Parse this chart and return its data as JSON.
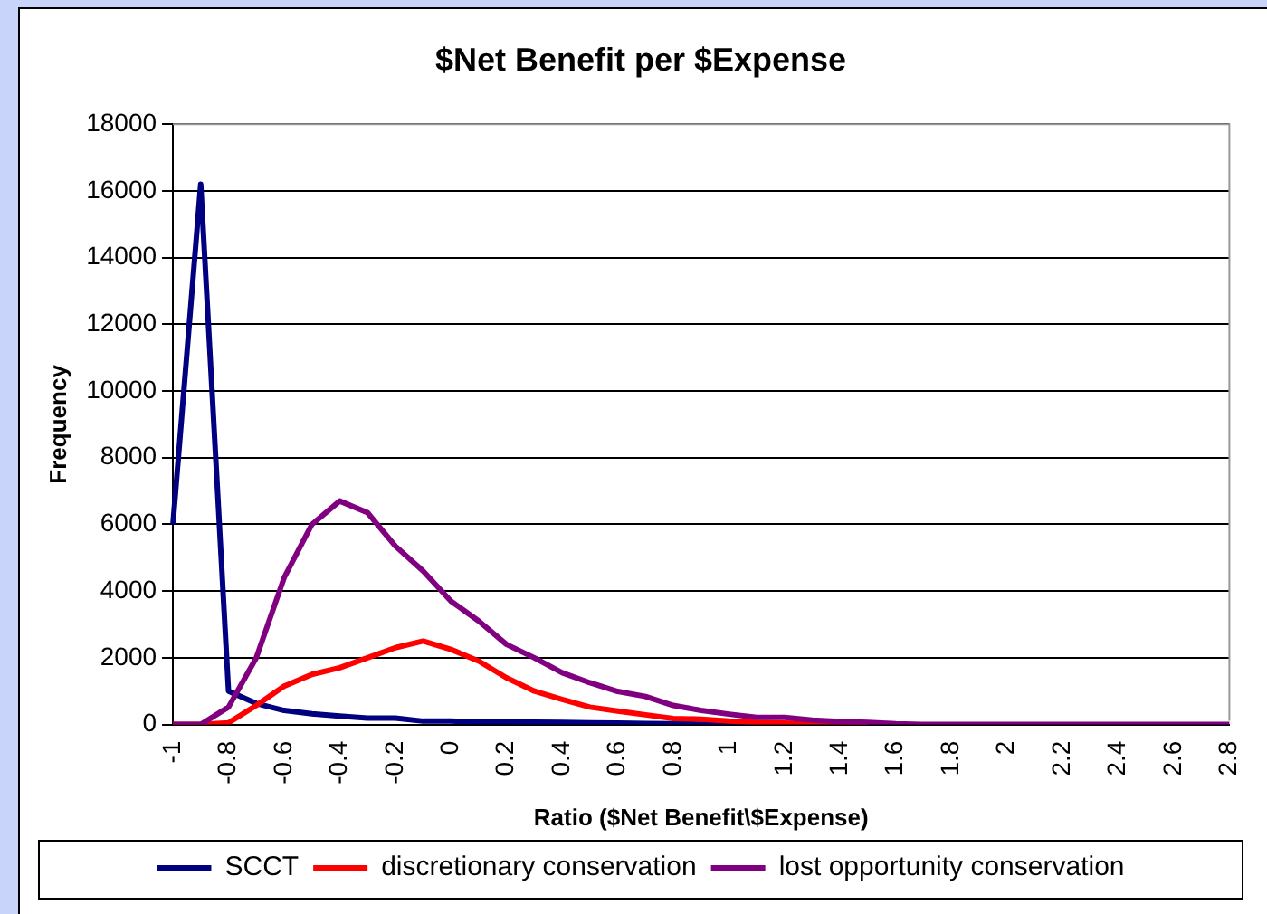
{
  "chart_data": {
    "type": "line",
    "title": "$Net Benefit per $Expense",
    "xlabel": "Ratio ($Net Benefit\\$Expense)",
    "ylabel": "Frequency",
    "categories": [
      "-1",
      null,
      "-0.8",
      null,
      "-0.6",
      null,
      "-0.4",
      null,
      "-0.2",
      null,
      "0",
      null,
      "0.2",
      null,
      "0.4",
      null,
      "0.6",
      null,
      "0.8",
      null,
      "1",
      null,
      "1.2",
      null,
      "1.4",
      null,
      "1.6",
      null,
      "1.8",
      null,
      "2",
      null,
      "2.2",
      null,
      "2.4",
      null,
      "2.6",
      null,
      "2.8"
    ],
    "series": [
      {
        "name": "SCCT",
        "color": "#000080",
        "values": [
          6000,
          16200,
          1000,
          630,
          420,
          320,
          250,
          190,
          190,
          100,
          100,
          80,
          80,
          70,
          60,
          50,
          40,
          30,
          20,
          10,
          0,
          0,
          null,
          null,
          null,
          null,
          null,
          null,
          null,
          null,
          null,
          null,
          null,
          null,
          null,
          null,
          null,
          null,
          null
        ]
      },
      {
        "name": "discretionary conservation",
        "color": "#ff0000",
        "values": [
          0,
          0,
          50,
          570,
          1150,
          1500,
          1700,
          2000,
          2300,
          2500,
          2250,
          1900,
          1400,
          1000,
          750,
          520,
          400,
          290,
          180,
          160,
          100,
          60,
          40,
          20,
          20,
          0,
          null,
          null,
          null,
          null,
          null,
          null,
          null,
          null,
          null,
          null,
          null,
          null,
          null
        ]
      },
      {
        "name": "lost opportunity conservation",
        "color": "#800080",
        "values": [
          0,
          0,
          520,
          2000,
          4400,
          6000,
          6700,
          6350,
          5350,
          4600,
          3700,
          3100,
          2400,
          2000,
          1550,
          1250,
          990,
          840,
          570,
          420,
          310,
          210,
          210,
          130,
          90,
          60,
          20,
          0,
          0,
          0,
          0,
          0,
          0,
          0,
          0,
          0,
          0,
          0,
          0
        ]
      }
    ],
    "ylim": [
      0,
      18000
    ],
    "yticks": [
      0,
      2000,
      4000,
      6000,
      8000,
      10000,
      12000,
      14000,
      16000,
      18000
    ],
    "grid": "y",
    "legend": "bottom",
    "marker": "none",
    "line_style": "solid"
  }
}
